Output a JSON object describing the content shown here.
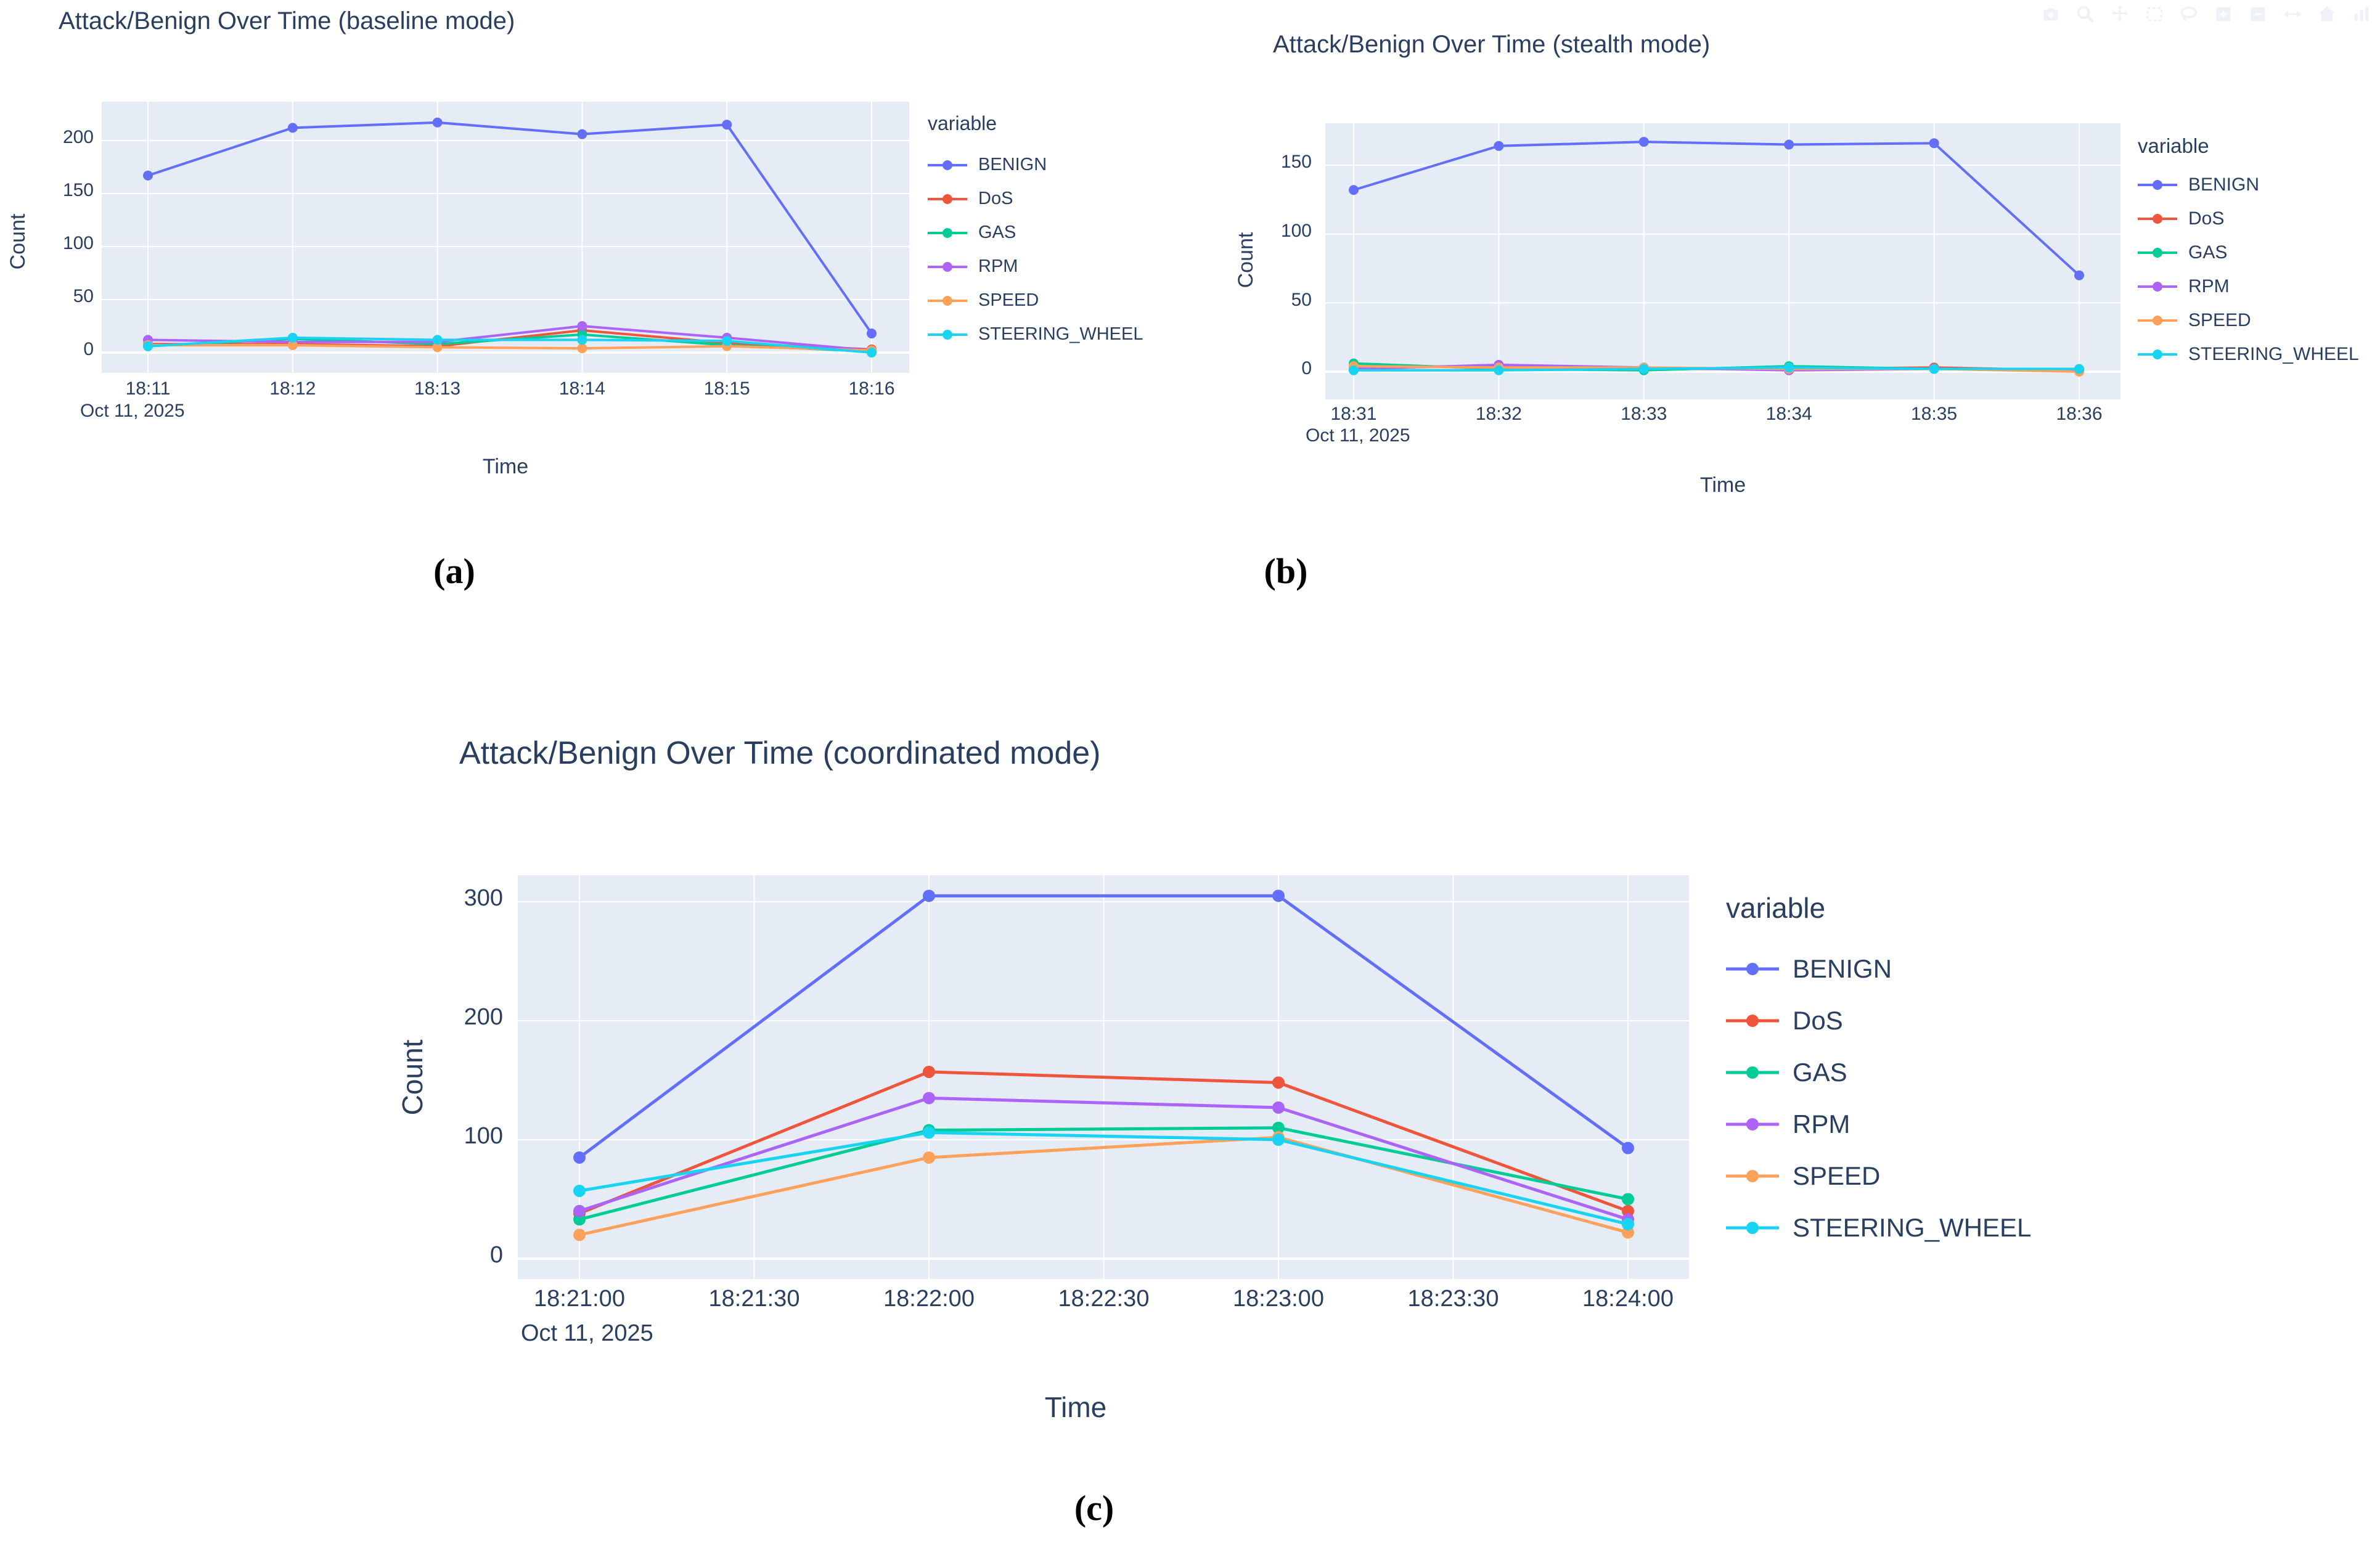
{
  "colors": {
    "plot_background": "#E5ECF6",
    "grid": "#FFFFFF",
    "text": "#2A3F5F",
    "benign": "#636EFA",
    "dos": "#EF553B",
    "gas": "#00CC96",
    "rpm": "#AB63FA",
    "speed": "#FFA15A",
    "steering_wheel": "#19D3F3"
  },
  "captions": {
    "a": "(a)",
    "b": "(b)",
    "c": "(c)"
  },
  "toolbar": {
    "icons": [
      "camera-icon",
      "zoom-icon",
      "pan-icon",
      "box-select-icon",
      "lasso-icon",
      "zoom-in-icon",
      "zoom-out-icon",
      "autoscale-icon",
      "reset-axes-icon",
      "plotly-logo-icon"
    ]
  },
  "chart_data": [
    {
      "type": "line",
      "title": "Attack/Benign Over Time (baseline mode)",
      "xlabel": "Time",
      "ylabel": "Count",
      "date_label": "Oct 11, 2025",
      "legend_title": "variable",
      "legend_position": "right",
      "grid": true,
      "x_ticks": [
        "18:11",
        "18:12",
        "18:13",
        "18:14",
        "18:15",
        "18:16"
      ],
      "y_ticks": [
        0,
        50,
        100,
        150,
        200
      ],
      "ylim": [
        -19,
        237
      ],
      "series": [
        {
          "name": "BENIGN",
          "color": "#636EFA",
          "values": [
            167,
            212,
            217,
            206,
            215,
            18
          ]
        },
        {
          "name": "DoS",
          "color": "#EF553B",
          "values": [
            8,
            8,
            6,
            21,
            9,
            3
          ]
        },
        {
          "name": "GAS",
          "color": "#00CC96",
          "values": [
            6,
            13,
            8,
            17,
            7,
            1
          ]
        },
        {
          "name": "RPM",
          "color": "#AB63FA",
          "values": [
            12,
            10,
            10,
            25,
            14,
            2
          ]
        },
        {
          "name": "SPEED",
          "color": "#FFA15A",
          "values": [
            7,
            7,
            5,
            4,
            6,
            2
          ]
        },
        {
          "name": "STEERING_WHEEL",
          "color": "#19D3F3",
          "values": [
            6,
            14,
            12,
            12,
            11,
            0
          ]
        }
      ]
    },
    {
      "type": "line",
      "title": "Attack/Benign Over Time (stealth mode)",
      "xlabel": "Time",
      "ylabel": "Count",
      "date_label": "Oct 11, 2025",
      "legend_title": "variable",
      "legend_position": "right",
      "grid": true,
      "x_ticks": [
        "18:31",
        "18:32",
        "18:33",
        "18:34",
        "18:35",
        "18:36"
      ],
      "y_ticks": [
        0,
        50,
        100,
        150
      ],
      "ylim": [
        -19,
        181
      ],
      "series": [
        {
          "name": "BENIGN",
          "color": "#636EFA",
          "values": [
            132,
            164,
            167,
            165,
            166,
            70
          ]
        },
        {
          "name": "DoS",
          "color": "#EF553B",
          "values": [
            3,
            4,
            2,
            2,
            3,
            1
          ]
        },
        {
          "name": "GAS",
          "color": "#00CC96",
          "values": [
            6,
            2,
            1,
            4,
            2,
            1
          ]
        },
        {
          "name": "RPM",
          "color": "#AB63FA",
          "values": [
            2,
            5,
            3,
            1,
            2,
            1
          ]
        },
        {
          "name": "SPEED",
          "color": "#FFA15A",
          "values": [
            4,
            3,
            3,
            2,
            2,
            0
          ]
        },
        {
          "name": "STEERING_WHEEL",
          "color": "#19D3F3",
          "values": [
            1,
            1,
            2,
            3,
            2,
            2
          ]
        }
      ]
    },
    {
      "type": "line",
      "title": "Attack/Benign Over Time (coordinated mode)",
      "xlabel": "Time",
      "ylabel": "Count",
      "date_label": "Oct 11, 2025",
      "legend_title": "variable",
      "legend_position": "right",
      "grid": true,
      "x_ticks": [
        "18:21:00",
        "18:21:30",
        "18:22:00",
        "18:22:30",
        "18:23:00",
        "18:23:30",
        "18:24:00"
      ],
      "data_at_tick_indices": [
        0,
        2,
        4,
        6
      ],
      "y_ticks": [
        0,
        100,
        200,
        300
      ],
      "ylim": [
        -17,
        322
      ],
      "series": [
        {
          "name": "BENIGN",
          "color": "#636EFA",
          "values": [
            85,
            305,
            305,
            93
          ]
        },
        {
          "name": "DoS",
          "color": "#EF553B",
          "values": [
            38,
            157,
            148,
            40
          ]
        },
        {
          "name": "GAS",
          "color": "#00CC96",
          "values": [
            33,
            108,
            110,
            50
          ]
        },
        {
          "name": "RPM",
          "color": "#AB63FA",
          "values": [
            40,
            135,
            127,
            33
          ]
        },
        {
          "name": "SPEED",
          "color": "#FFA15A",
          "values": [
            20,
            85,
            102,
            22
          ]
        },
        {
          "name": "STEERING_WHEEL",
          "color": "#19D3F3",
          "values": [
            57,
            106,
            100,
            29
          ]
        }
      ]
    }
  ]
}
